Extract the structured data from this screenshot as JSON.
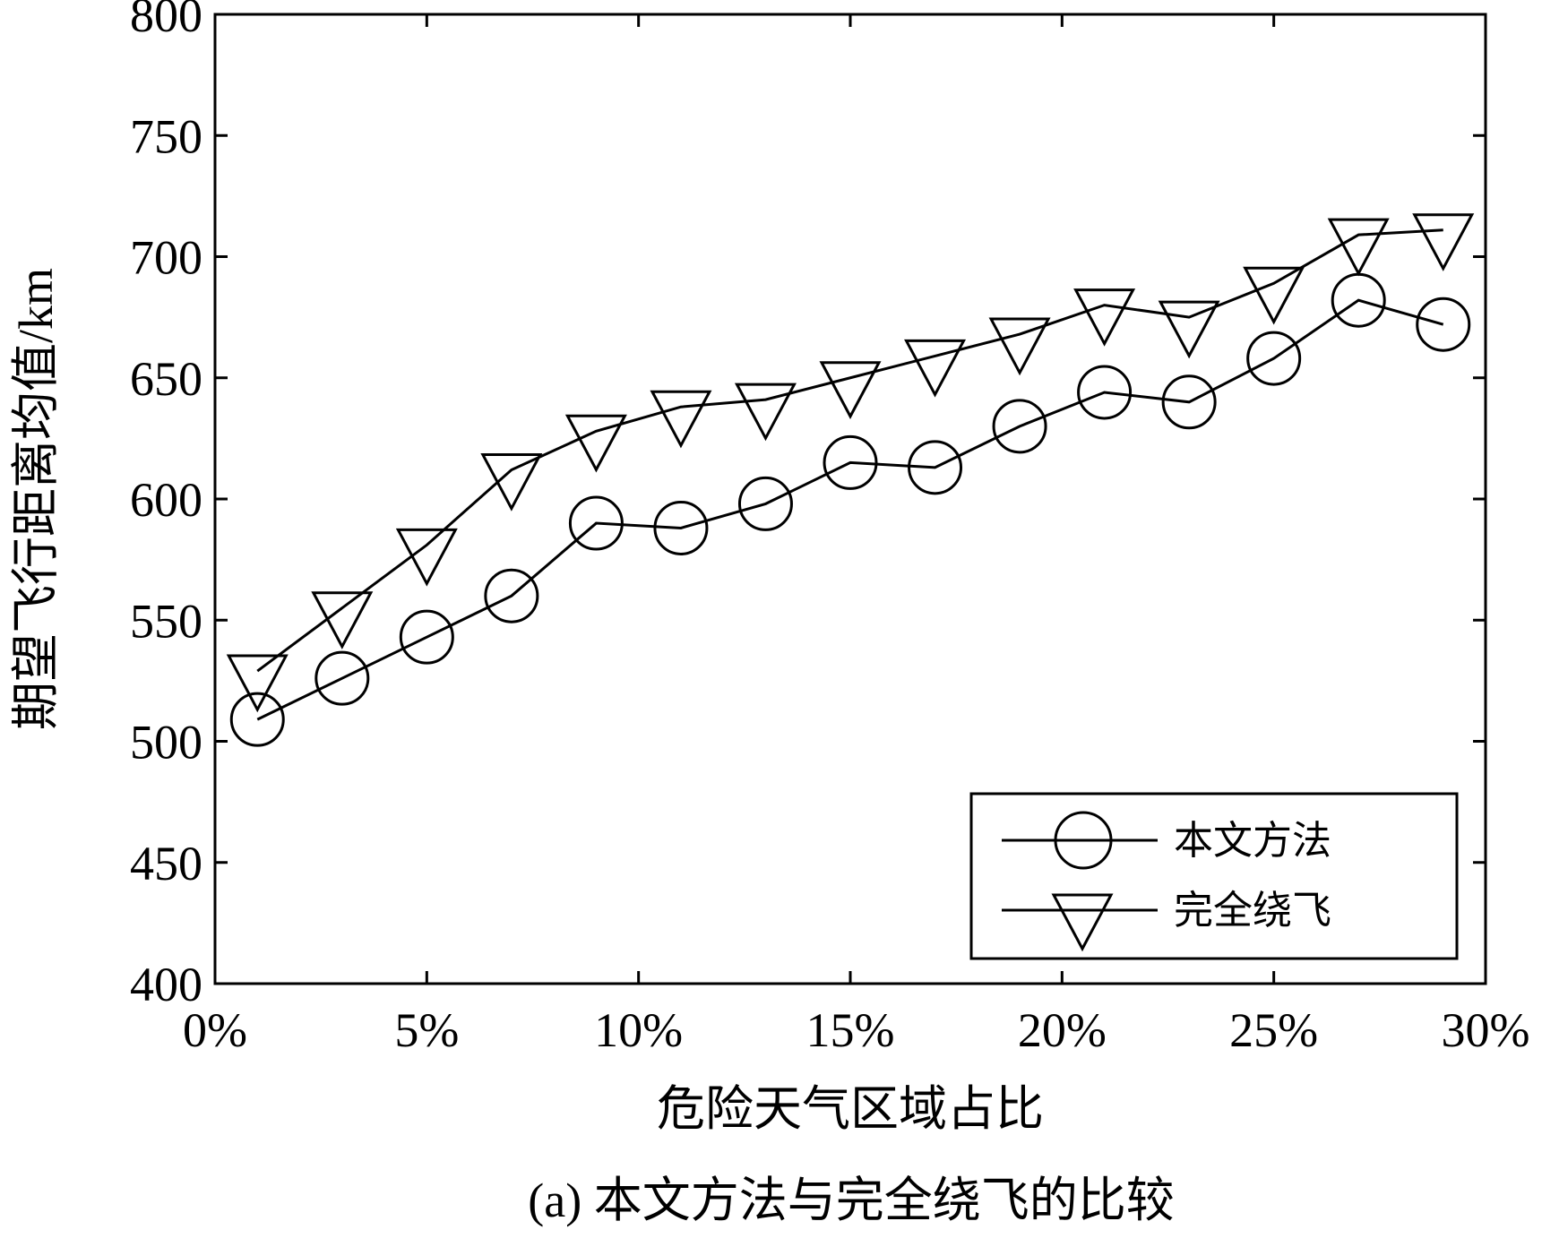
{
  "chart_data": {
    "type": "line",
    "caption": "(a) 本文方法与完全绕飞的比较",
    "xlabel": "危险天气区域占比",
    "ylabel": "期望飞行距离均值/km",
    "xlim": [
      0,
      30
    ],
    "ylim": [
      400,
      800
    ],
    "x_ticks": [
      0,
      5,
      10,
      15,
      20,
      25,
      30
    ],
    "x_tick_labels": [
      "0%",
      "5%",
      "10%",
      "15%",
      "20%",
      "25%",
      "30%"
    ],
    "y_ticks": [
      400,
      450,
      500,
      550,
      600,
      650,
      700,
      750,
      800
    ],
    "y_tick_labels": [
      "400",
      "450",
      "500",
      "550",
      "600",
      "650",
      "700",
      "750",
      "800"
    ],
    "x": [
      1,
      3,
      5,
      7,
      9,
      11,
      13,
      15,
      17,
      19,
      21,
      23,
      25,
      27,
      29
    ],
    "series": [
      {
        "name": "本文方法",
        "marker": "circle",
        "values": [
          509,
          526,
          543,
          560,
          590,
          588,
          598,
          615,
          613,
          630,
          644,
          640,
          658,
          682,
          672
        ]
      },
      {
        "name": "完全绕飞",
        "marker": "triangle-down",
        "values": [
          529,
          555,
          581,
          612,
          628,
          638,
          641,
          650,
          659,
          668,
          680,
          675,
          689,
          709,
          711
        ]
      }
    ],
    "grid": false,
    "legend_position": "bottom-right"
  }
}
